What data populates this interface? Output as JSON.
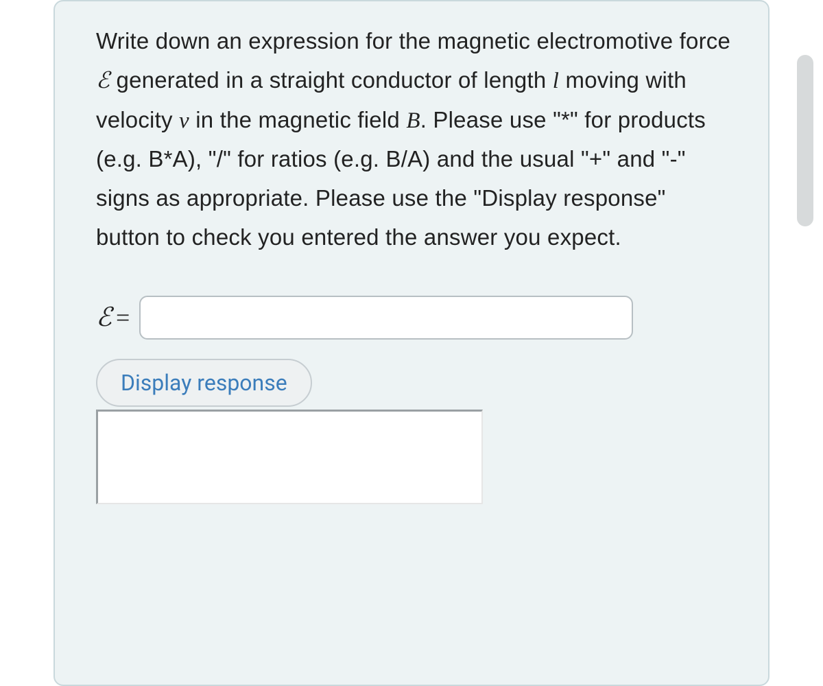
{
  "colors": {
    "card_bg": "#edf3f4",
    "card_border": "#c9d8dc",
    "text": "#222222",
    "input_border": "#b7bfc3",
    "input_bg": "#ffffff",
    "button_bg": "#eef1f2",
    "button_border": "#c6cdd1",
    "button_text": "#3b7dbb",
    "response_border_dark": "#9aa0a3",
    "scrollbar": "#d7dadb"
  },
  "typography": {
    "body_fontsize": 33,
    "label_fontsize": 38,
    "button_fontsize": 32,
    "math_family": "Times New Roman"
  },
  "question": {
    "part1": "Write down an expression for the magnetic electromotive force ",
    "E": "ℰ",
    "part2": " generated in a straight conductor  of length ",
    "l": "l",
    "part3": " moving with velocity ",
    "v": "v",
    "part4": " in the magnetic field ",
    "B": "B",
    "part5": ". Please use \"*\" for products (e.g. B*A), \"/\" for ratios (e.g. B/A) and the usual \"+\" and \"-\" signs as appropriate. Please use the \"Display response\" button to check you entered the answer you expect."
  },
  "answer": {
    "label_symbol": "ℰ",
    "equals": "=",
    "value": "",
    "placeholder": ""
  },
  "button": {
    "display_label": "Display response"
  }
}
